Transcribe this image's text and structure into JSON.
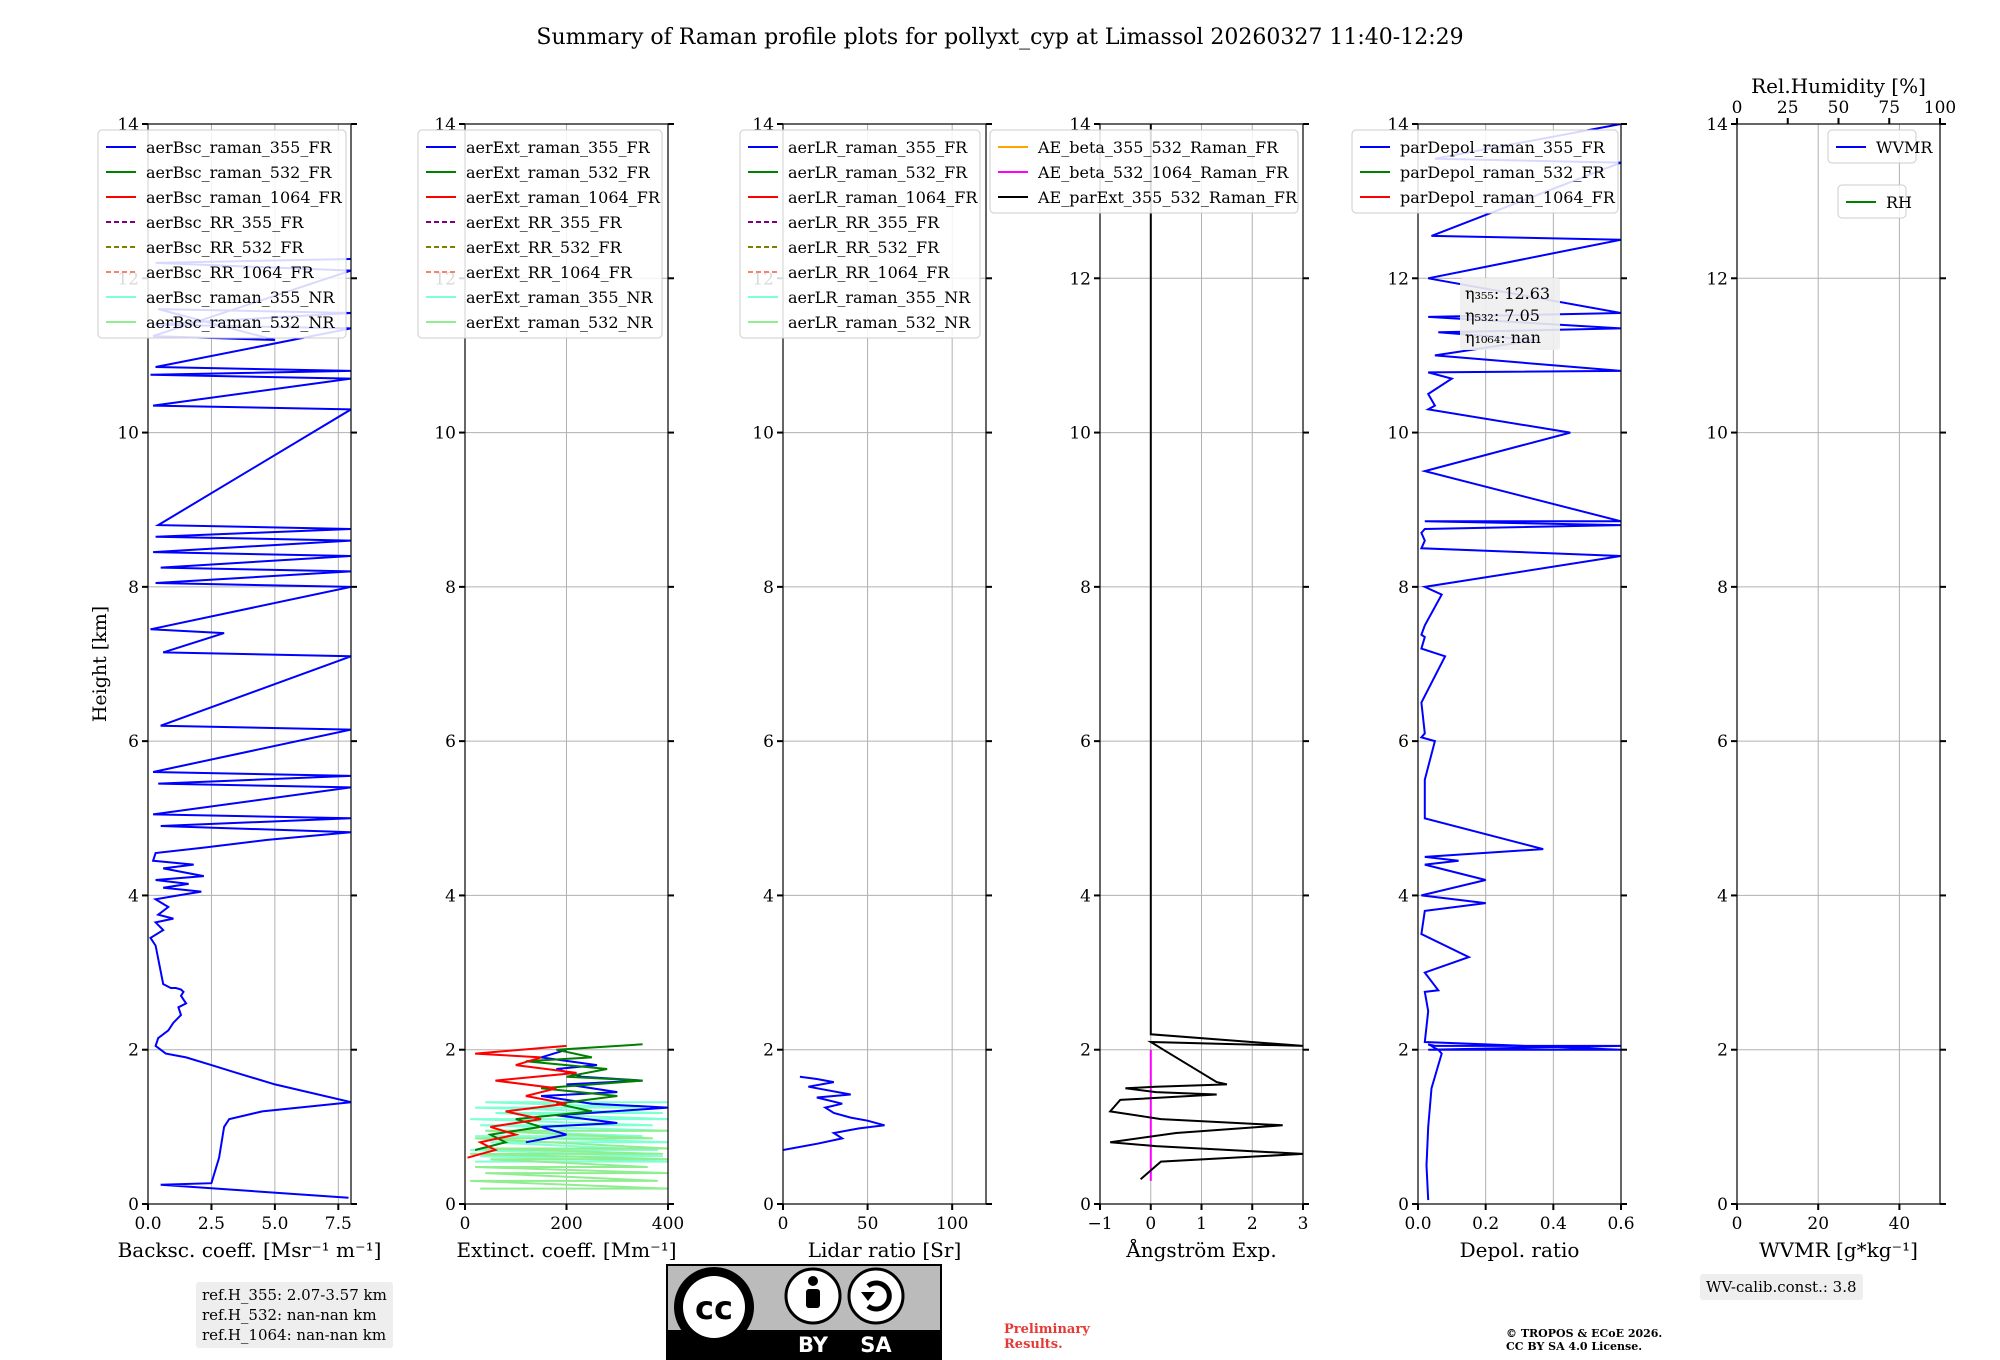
{
  "figure": {
    "title": "Summary of Raman profile plots for pollyxt_cyp at Limassol 20260327 11:40-12:29",
    "ylabel": "Height [km]",
    "y_ticks": [
      0,
      2,
      4,
      6,
      8,
      10,
      12,
      14
    ],
    "y_tick_labels": [
      "0",
      "2",
      "4",
      "6",
      "8",
      "10",
      "12",
      "14"
    ],
    "colors": {
      "blue": "#0000ff",
      "green": "#008000",
      "red": "#ff0000",
      "purple": "#800080",
      "olive": "#808000",
      "salmon": "#fa8072",
      "cyan": "#7fffd4",
      "lightgreen": "#90ee90",
      "orange": "#ffa500",
      "magenta": "#ff00ff",
      "black": "#000000",
      "grid": "#b0b0b0"
    }
  },
  "chart_data": [
    {
      "id": "backscatter",
      "type": "line",
      "xlabel": "Backsc. coeff. [Msr⁻¹ m⁻¹]",
      "xlim": [
        0,
        8
      ],
      "x_ticks": [
        0,
        2.5,
        5,
        7.5
      ],
      "x_tick_labels": [
        "0.0",
        "2.5",
        "5.0",
        "7.5"
      ],
      "ylim": [
        0,
        14
      ],
      "legend_position": "top-left",
      "legend": [
        {
          "label": "aerBsc_raman_355_FR",
          "color": "blue",
          "dash": false
        },
        {
          "label": "aerBsc_raman_532_FR",
          "color": "green",
          "dash": false
        },
        {
          "label": "aerBsc_raman_1064_FR",
          "color": "red",
          "dash": false
        },
        {
          "label": "aerBsc_RR_355_FR",
          "color": "purple",
          "dash": true
        },
        {
          "label": "aerBsc_RR_532_FR",
          "color": "olive",
          "dash": true
        },
        {
          "label": "aerBsc_RR_1064_FR",
          "color": "salmon",
          "dash": true
        },
        {
          "label": "aerBsc_raman_355_NR",
          "color": "cyan",
          "dash": false
        },
        {
          "label": "aerBsc_raman_532_NR",
          "color": "lightgreen",
          "dash": false
        }
      ],
      "series": [
        {
          "name": "aerBsc_raman_355_FR",
          "color": "blue",
          "x": [
            7.9,
            0.5,
            2.5,
            2.8,
            3.0,
            3.2,
            4.5,
            8.0,
            5.0,
            3.5,
            2.5,
            1.5,
            0.7,
            0.3,
            0.4,
            0.8,
            1.0,
            1.3,
            1.2,
            1.5,
            1.4,
            1.3,
            1.4,
            1.3,
            1.1,
            0.9,
            0.6,
            0.3,
            0.1,
            0.6,
            0.3,
            1.0,
            0.4,
            0.8,
            0.3,
            1.2,
            2.1,
            0.6,
            1.6,
            0.3,
            2.2,
            0.6,
            1.8,
            0.2,
            0.3,
            2.2,
            4.7,
            8.0,
            0.5,
            8.0,
            0.2,
            8.0,
            0.4,
            8.0,
            0.2,
            8.0,
            0.5,
            8.0,
            0.6,
            3.0,
            0.1,
            8.0,
            0.3,
            8.0,
            0.5,
            8.0,
            0.2,
            8.0,
            0.3,
            8.0,
            0.4,
            8.0,
            0.2,
            8.0,
            0.1,
            8.0,
            0.3,
            8.0,
            0.2,
            8.0,
            0.4,
            5.0,
            0.2,
            8.0,
            0.3,
            8.0
          ],
          "y": [
            0.08,
            0.25,
            0.27,
            0.6,
            1.0,
            1.1,
            1.2,
            1.32,
            1.55,
            1.7,
            1.8,
            1.9,
            1.95,
            2.05,
            2.15,
            2.25,
            2.35,
            2.45,
            2.55,
            2.6,
            2.65,
            2.7,
            2.75,
            2.78,
            2.8,
            2.8,
            2.85,
            3.35,
            3.45,
            3.55,
            3.65,
            3.7,
            3.75,
            3.85,
            3.95,
            4.0,
            4.05,
            4.1,
            4.15,
            4.2,
            4.25,
            4.35,
            4.4,
            4.45,
            4.55,
            4.62,
            4.72,
            4.82,
            4.9,
            5.0,
            5.05,
            5.4,
            5.45,
            5.55,
            5.6,
            6.15,
            6.2,
            7.1,
            7.15,
            7.4,
            7.45,
            8.0,
            8.05,
            8.2,
            8.25,
            8.4,
            8.45,
            8.6,
            8.65,
            8.75,
            8.8,
            10.3,
            10.35,
            10.7,
            10.75,
            10.8,
            10.85,
            11.35,
            11.4,
            11.55,
            11.6,
            11.2,
            11.25,
            12.1,
            12.2,
            12.25
          ]
        }
      ]
    },
    {
      "id": "extinction",
      "type": "line",
      "xlabel": "Extinct. coeff. [Mm⁻¹]",
      "xlim": [
        0,
        400
      ],
      "x_ticks": [
        0,
        200,
        400
      ],
      "x_tick_labels": [
        "0",
        "200",
        "400"
      ],
      "ylim": [
        0,
        14
      ],
      "legend_position": "top-left",
      "legend": [
        {
          "label": "aerExt_raman_355_FR",
          "color": "blue",
          "dash": false
        },
        {
          "label": "aerExt_raman_532_FR",
          "color": "green",
          "dash": false
        },
        {
          "label": "aerExt_raman_1064_FR",
          "color": "red",
          "dash": false
        },
        {
          "label": "aerExt_RR_355_FR",
          "color": "purple",
          "dash": true
        },
        {
          "label": "aerExt_RR_532_FR",
          "color": "olive",
          "dash": true
        },
        {
          "label": "aerExt_RR_1064_FR",
          "color": "salmon",
          "dash": true
        },
        {
          "label": "aerExt_raman_355_NR",
          "color": "cyan",
          "dash": false
        },
        {
          "label": "aerExt_raman_532_NR",
          "color": "lightgreen",
          "dash": false
        }
      ],
      "series": [
        {
          "name": "aerExt_raman_355_NR",
          "color": "cyan",
          "x": [
            20,
            400,
            30,
            390,
            10,
            380,
            50,
            400,
            20,
            350,
            40,
            400,
            30,
            370,
            10,
            400,
            60,
            390,
            20,
            360,
            40,
            400
          ],
          "y": [
            0.55,
            0.55,
            0.62,
            0.62,
            0.7,
            0.7,
            0.8,
            0.8,
            0.88,
            0.88,
            0.95,
            0.95,
            1.02,
            1.02,
            1.1,
            1.1,
            1.18,
            1.18,
            1.25,
            1.25,
            1.32,
            1.32
          ]
        },
        {
          "name": "aerExt_raman_532_NR",
          "color": "lightgreen",
          "x": [
            30,
            400,
            10,
            380,
            40,
            400,
            20,
            360,
            50,
            400,
            10,
            390,
            30,
            400,
            20,
            370,
            40,
            400
          ],
          "y": [
            0.2,
            0.2,
            0.3,
            0.3,
            0.4,
            0.4,
            0.48,
            0.48,
            0.58,
            0.58,
            0.65,
            0.65,
            0.72,
            0.72,
            0.85,
            0.85,
            0.95,
            0.95
          ]
        },
        {
          "name": "aerExt_raman_355_FR",
          "color": "blue",
          "x": [
            120,
            200,
            150,
            300,
            180,
            400,
            250,
            150,
            300,
            200,
            350,
            230,
            180,
            260,
            150,
            200
          ],
          "y": [
            0.8,
            0.9,
            1.0,
            1.05,
            1.15,
            1.25,
            1.3,
            1.4,
            1.45,
            1.55,
            1.6,
            1.65,
            1.75,
            1.8,
            1.9,
            2.0
          ]
        },
        {
          "name": "aerExt_raman_532_FR",
          "color": "green",
          "x": [
            20,
            80,
            50,
            150,
            100,
            250,
            180,
            300,
            150,
            350,
            200,
            280,
            120,
            250,
            180,
            350
          ],
          "y": [
            0.7,
            0.8,
            0.9,
            1.0,
            1.1,
            1.2,
            1.3,
            1.4,
            1.5,
            1.6,
            1.65,
            1.75,
            1.85,
            1.9,
            2.0,
            2.07
          ]
        },
        {
          "name": "aerExt_raman_1064_FR",
          "color": "red",
          "x": [
            5,
            60,
            30,
            100,
            50,
            150,
            80,
            200,
            120,
            180,
            60,
            220,
            100,
            150,
            20,
            200
          ],
          "y": [
            0.6,
            0.7,
            0.8,
            0.9,
            1.0,
            1.1,
            1.2,
            1.3,
            1.4,
            1.5,
            1.6,
            1.7,
            1.8,
            1.9,
            1.95,
            2.05
          ]
        }
      ]
    },
    {
      "id": "lidar_ratio",
      "type": "line",
      "xlabel": "Lidar ratio [Sr]",
      "xlim": [
        0,
        120
      ],
      "x_ticks": [
        0,
        50,
        100
      ],
      "x_tick_labels": [
        "0",
        "50",
        "100"
      ],
      "ylim": [
        0,
        14
      ],
      "legend_position": "top-left",
      "legend": [
        {
          "label": "aerLR_raman_355_FR",
          "color": "blue",
          "dash": false
        },
        {
          "label": "aerLR_raman_532_FR",
          "color": "green",
          "dash": false
        },
        {
          "label": "aerLR_raman_1064_FR",
          "color": "red",
          "dash": false
        },
        {
          "label": "aerLR_RR_355_FR",
          "color": "purple",
          "dash": true
        },
        {
          "label": "aerLR_RR_532_FR",
          "color": "olive",
          "dash": true
        },
        {
          "label": "aerLR_RR_1064_FR",
          "color": "salmon",
          "dash": true
        },
        {
          "label": "aerLR_raman_355_NR",
          "color": "cyan",
          "dash": false
        },
        {
          "label": "aerLR_raman_532_NR",
          "color": "lightgreen",
          "dash": false
        }
      ],
      "series": [
        {
          "name": "aerLR_raman_355_FR",
          "color": "blue",
          "x": [
            0,
            20,
            35,
            30,
            45,
            60,
            50,
            40,
            30,
            25,
            35,
            20,
            40,
            25,
            15,
            30,
            20,
            10
          ],
          "y": [
            0.7,
            0.78,
            0.85,
            0.92,
            0.98,
            1.02,
            1.08,
            1.12,
            1.18,
            1.25,
            1.3,
            1.38,
            1.42,
            1.48,
            1.52,
            1.58,
            1.62,
            1.65
          ]
        }
      ]
    },
    {
      "id": "angstrom",
      "type": "line",
      "xlabel": "Ångström Exp.",
      "xlim": [
        -1,
        3
      ],
      "x_ticks": [
        -1,
        0,
        1,
        2,
        3
      ],
      "x_tick_labels": [
        "−1",
        "0",
        "1",
        "2",
        "3"
      ],
      "ylim": [
        0,
        14
      ],
      "legend_position": "top",
      "legend": [
        {
          "label": "AE_beta_355_532_Raman_FR",
          "color": "orange",
          "dash": false
        },
        {
          "label": "AE_beta_532_1064_Raman_FR",
          "color": "magenta",
          "dash": false
        },
        {
          "label": "AE_parExt_355_532_Raman_FR",
          "color": "black",
          "dash": false
        }
      ],
      "series": [
        {
          "name": "AE_beta_532_1064_Raman_FR",
          "color": "magenta",
          "x": [
            0,
            0
          ],
          "y": [
            0.3,
            2.0
          ]
        },
        {
          "name": "AE_parExt_355_532_Raman_FR",
          "color": "black",
          "x": [
            -0.2,
            0.2,
            3.0,
            0.1,
            -0.8,
            0.5,
            2.6,
            0.2,
            -0.8,
            -0.6,
            1.3,
            0.1,
            -0.5,
            0.1,
            1.5,
            1.3,
            0.3,
            0.0,
            3.0,
            0.0,
            0.0
          ],
          "y": [
            0.32,
            0.55,
            0.65,
            0.75,
            0.8,
            0.92,
            1.02,
            1.1,
            1.2,
            1.35,
            1.42,
            1.45,
            1.5,
            1.52,
            1.55,
            1.58,
            1.98,
            2.1,
            2.05,
            2.2,
            14.0
          ]
        }
      ]
    },
    {
      "id": "depolarization",
      "type": "line",
      "xlabel": "Depol. ratio",
      "xlim": [
        0,
        0.6
      ],
      "x_ticks": [
        0,
        0.2,
        0.4,
        0.6
      ],
      "x_tick_labels": [
        "0.0",
        "0.2",
        "0.4",
        "0.6"
      ],
      "ylim": [
        0,
        14
      ],
      "legend_position": "top-left",
      "legend": [
        {
          "label": "parDepol_raman_355_FR",
          "color": "blue",
          "dash": false
        },
        {
          "label": "parDepol_raman_532_FR",
          "color": "green",
          "dash": false
        },
        {
          "label": "parDepol_raman_1064_FR",
          "color": "red",
          "dash": false
        }
      ],
      "annotation": [
        "η₃₅₅: 12.63",
        "η₅₃₂: 7.05",
        "η₁₀₆₄: nan"
      ],
      "series": [
        {
          "name": "parDepol_raman_355_FR",
          "color": "blue",
          "x": [
            0.03,
            0.025,
            0.03,
            0.04,
            0.06,
            0.07,
            0.06,
            0.05,
            0.04,
            0.03,
            0.05,
            0.6,
            0.03,
            0.6,
            0.02,
            0.03,
            0.02,
            0.06,
            0.02,
            0.15,
            0.01,
            0.02,
            0.2,
            0.01,
            0.2,
            0.02,
            0.12,
            0.02,
            0.37,
            0.02,
            0.02,
            0.05,
            0.01,
            0.02,
            0.01,
            0.08,
            0.01,
            0.02,
            0.01,
            0.02,
            0.07,
            0.02,
            0.6,
            0.01,
            0.02,
            0.01,
            0.02,
            0.6,
            0.02,
            0.6,
            0.02,
            0.45,
            0.03,
            0.05,
            0.03,
            0.1,
            0.03,
            0.6,
            0.05,
            0.35,
            0.06,
            0.6,
            0.03,
            0.6,
            0.03,
            0.6,
            0.04,
            0.6,
            0.05,
            0.6
          ],
          "y": [
            0.05,
            0.5,
            1.0,
            1.5,
            1.8,
            1.95,
            2.0,
            2.02,
            2.05,
            2.07,
            2.05,
            2.05,
            2.0,
            2.0,
            2.1,
            2.5,
            2.75,
            2.77,
            3.0,
            3.2,
            3.5,
            3.8,
            3.9,
            4.0,
            4.2,
            4.4,
            4.45,
            4.5,
            4.6,
            5.0,
            5.5,
            6.0,
            6.05,
            6.1,
            6.5,
            7.1,
            7.2,
            7.35,
            7.38,
            7.5,
            7.9,
            8.0,
            8.4,
            8.5,
            8.6,
            8.7,
            8.75,
            8.8,
            8.85,
            8.85,
            9.5,
            10.0,
            10.3,
            10.35,
            10.5,
            10.7,
            10.78,
            10.8,
            11.0,
            11.2,
            11.3,
            11.35,
            11.5,
            11.55,
            12.0,
            12.5,
            12.55,
            13.5,
            13.55,
            14.0
          ]
        }
      ]
    },
    {
      "id": "wvmr_rh",
      "type": "line",
      "xlabel": "WVMR [g*kg⁻¹]",
      "xlim": [
        0,
        50
      ],
      "x_ticks": [
        0,
        20,
        40
      ],
      "x_tick_labels": [
        "0",
        "20",
        "40"
      ],
      "top_xlabel": "Rel.Humidity [%]",
      "top_xlim": [
        0,
        100
      ],
      "top_x_ticks": [
        0,
        25,
        50,
        75,
        100
      ],
      "top_x_tick_labels": [
        "0",
        "25",
        "50",
        "75",
        "100"
      ],
      "ylim": [
        0,
        14
      ],
      "legend_position": "top-right",
      "legend": [
        {
          "label": "WVMR",
          "color": "blue",
          "dash": false
        }
      ],
      "legend2": [
        {
          "label": "RH",
          "color": "green",
          "dash": false
        }
      ],
      "series": []
    }
  ],
  "info": {
    "ref_heights": [
      "ref.H_355: 2.07-3.57 km",
      "ref.H_532: nan-nan km",
      "ref.H_1064: nan-nan km"
    ],
    "wv_calib": "WV-calib.const.: 3.8",
    "preliminary": [
      "Preliminary",
      "Results."
    ],
    "copyright": [
      "© TROPOS & ECoE 2026.",
      "CC BY SA 4.0 License."
    ],
    "license_badge": {
      "cc": "cc",
      "by": "BY",
      "sa": "SA"
    }
  }
}
